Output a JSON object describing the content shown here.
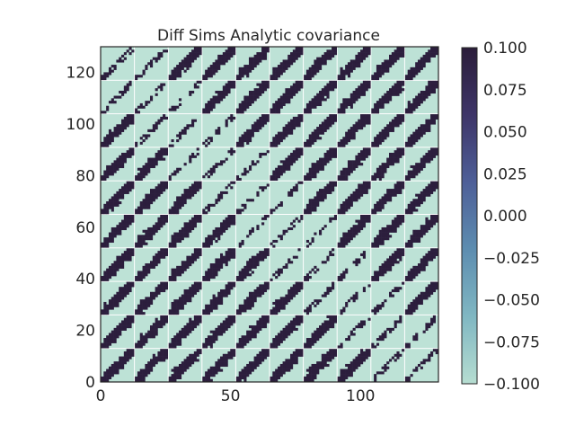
{
  "chart_data": {
    "type": "heatmap",
    "title": "Diff Sims Analytic covariance",
    "xlabel": "",
    "ylabel": "",
    "xlim": [
      0,
      130
    ],
    "ylim": [
      0,
      130
    ],
    "x_ticks": [
      0,
      50,
      100
    ],
    "y_ticks": [
      0,
      20,
      40,
      60,
      80,
      100,
      120
    ],
    "grid": "10 x 10 block grid, white separators",
    "block_size": 13,
    "value_range": [
      -0.1,
      0.1
    ],
    "pattern": "each block is light (-0.1) background with a dark (0.1) diagonal band; off-diagonal blocks along the anti-trend show speckled/broken bands",
    "colorbar": {
      "ticks": [
        0.1,
        0.075,
        0.05,
        0.025,
        0.0,
        -0.025,
        -0.05,
        -0.075,
        -0.1
      ],
      "tick_labels": [
        "0.100",
        "0.075",
        "0.050",
        "0.025",
        "0.000",
        "−0.025",
        "−0.050",
        "−0.075",
        "−0.100"
      ],
      "colormap": [
        "#b6ddd1",
        "#80b7c2",
        "#5d8db0",
        "#4e5f98",
        "#3e3568",
        "#2b1d3a"
      ],
      "placement": "right"
    },
    "colors": {
      "high": "#2c1e3d",
      "low": "#bde2d6",
      "separator": "#ffffff"
    }
  }
}
